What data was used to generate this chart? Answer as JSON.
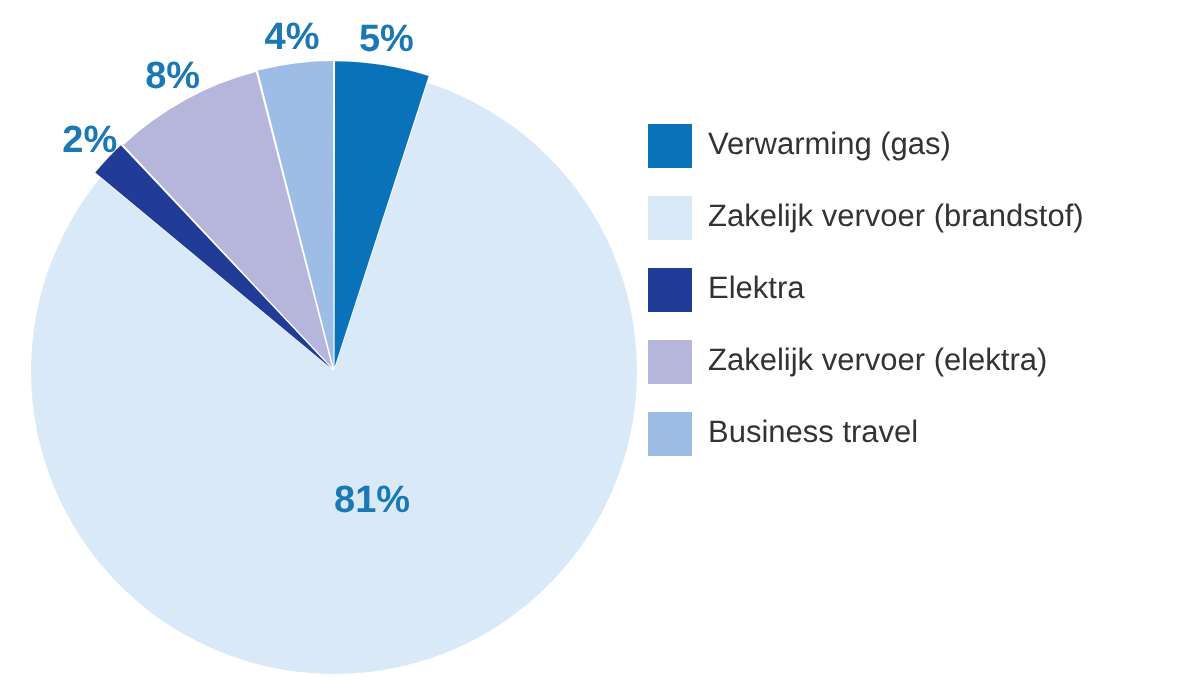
{
  "chart_data": {
    "type": "pie",
    "categories": [
      "Verwarming (gas)",
      "Zakelijk vervoer (brandstof)",
      "Elektra",
      "Zakelijk vervoer (elektra)",
      "Business travel"
    ],
    "values": [
      5,
      81,
      2,
      8,
      4
    ],
    "value_labels": [
      "5%",
      "81%",
      "2%",
      "8%",
      "4%"
    ],
    "colors": [
      "#0a72b8",
      "#dae9f8",
      "#203c96",
      "#b6b6dc",
      "#9ebde6"
    ],
    "legend": "right"
  }
}
